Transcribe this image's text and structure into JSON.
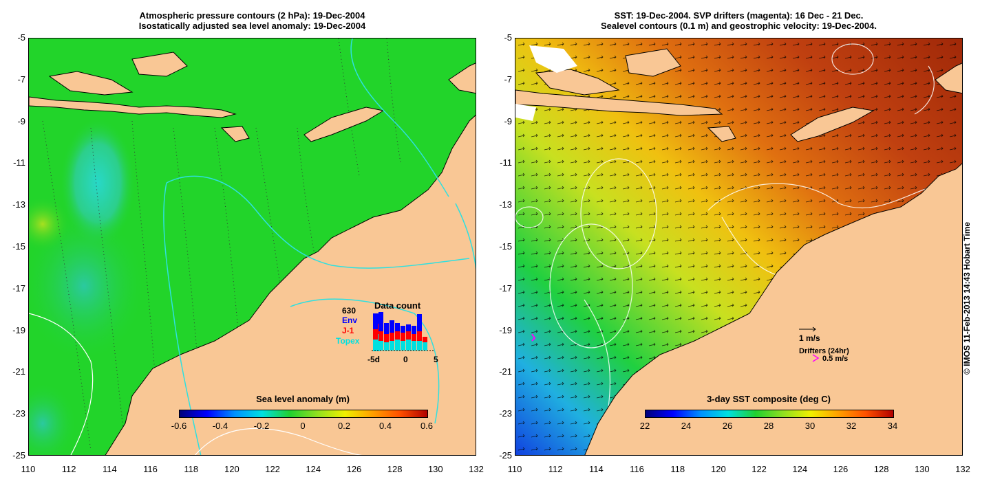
{
  "left_map": {
    "title_line1": "Atmospheric pressure contours (2 hPa): 19-Dec-2004",
    "title_line2": "Isostatically adjusted sea level anomaly: 19-Dec-2004",
    "colorbar_title": "Sea level anomaly (m)",
    "colorbar_ticks": [
      "-0.6",
      "-0.4",
      "-0.2",
      "0",
      "0.2",
      "0.4",
      "0.6"
    ],
    "inset": {
      "title": "Data count",
      "total": "630",
      "legend": [
        {
          "label": "Env",
          "color": "#0000ff"
        },
        {
          "label": "J-1",
          "color": "#ff0000"
        },
        {
          "label": "Topex",
          "color": "#00e0e0"
        }
      ],
      "x_ticks": [
        "-5d",
        "0",
        "5"
      ]
    }
  },
  "right_map": {
    "title_line1": "SST: 19-Dec-2004. SVP drifters (magenta): 16 Dec - 21 Dec.",
    "title_line2": "Sealevel contours (0.1 m) and geostrophic velocity: 19-Dec-2004.",
    "colorbar_title": "3-day SST composite (deg C)",
    "colorbar_ticks": [
      "22",
      "24",
      "26",
      "28",
      "30",
      "32",
      "34"
    ],
    "velocity_scale_label": "1 m/s",
    "drifter_label": "Drifters (24hr)",
    "drifter_scale_label": "0.5 m/s"
  },
  "axes": {
    "y_ticks": [
      "-5",
      "-7",
      "-9",
      "-11",
      "-13",
      "-15",
      "-17",
      "-19",
      "-21",
      "-23",
      "-25"
    ],
    "x_ticks": [
      "110",
      "112",
      "114",
      "116",
      "118",
      "120",
      "122",
      "124",
      "126",
      "128",
      "130",
      "132"
    ]
  },
  "watermark": "© IMOS 11-Feb-2013 14:43 Hobart Time",
  "colors": {
    "land": "#f9c795",
    "ocean_green": "#22d42a",
    "contour_cyan": "#2ee0e0"
  }
}
